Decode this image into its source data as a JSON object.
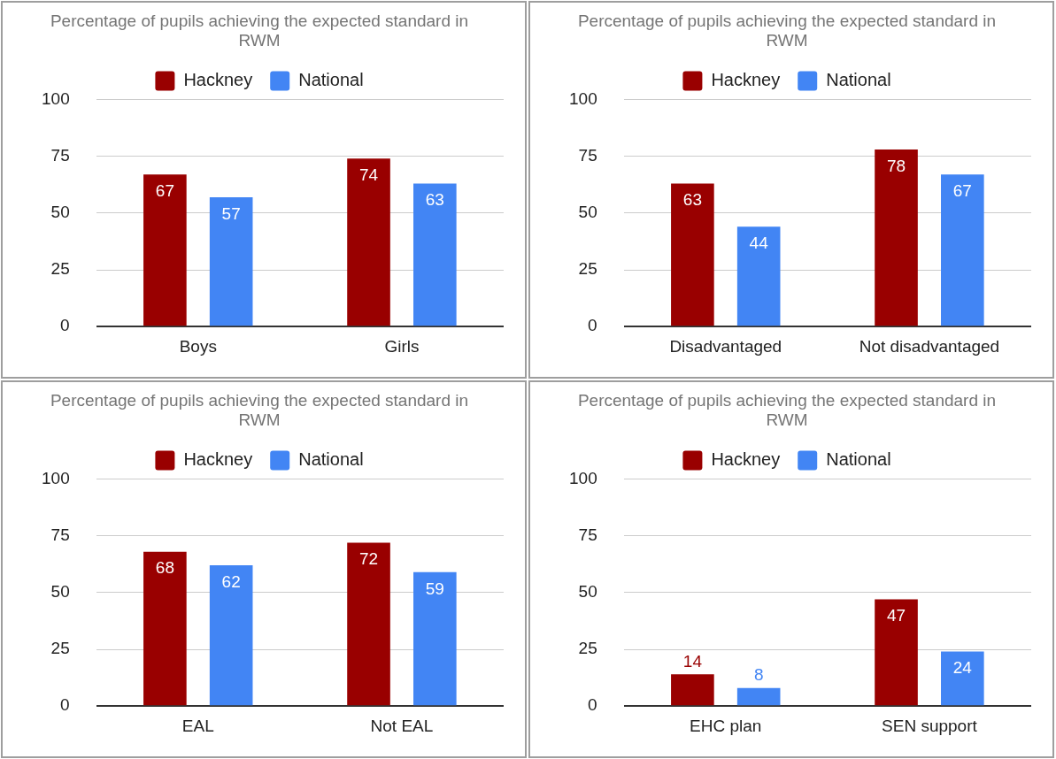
{
  "chart_data": [
    {
      "type": "bar",
      "title": "Percentage of pupils achieving the expected standard in RWM",
      "categories": [
        "Boys",
        "Girls"
      ],
      "series": [
        {
          "name": "Hackney",
          "color": "#990000",
          "values": [
            67,
            74
          ]
        },
        {
          "name": "National",
          "color": "#4285f4",
          "values": [
            57,
            63
          ]
        }
      ],
      "ylim": [
        0,
        100
      ],
      "yticks": [
        0,
        25,
        50,
        75,
        100
      ],
      "grid": "y",
      "legend": "top",
      "data_labels": true
    },
    {
      "type": "bar",
      "title": "Percentage of pupils achieving the expected standard in RWM",
      "categories": [
        "Disadvantaged",
        "Not disadvantaged"
      ],
      "series": [
        {
          "name": "Hackney",
          "color": "#990000",
          "values": [
            63,
            78
          ]
        },
        {
          "name": "National",
          "color": "#4285f4",
          "values": [
            44,
            67
          ]
        }
      ],
      "ylim": [
        0,
        100
      ],
      "yticks": [
        0,
        25,
        50,
        75,
        100
      ],
      "grid": "y",
      "legend": "top",
      "data_labels": true
    },
    {
      "type": "bar",
      "title": "Percentage of pupils achieving the expected standard in RWM",
      "categories": [
        "EAL",
        "Not EAL"
      ],
      "series": [
        {
          "name": "Hackney",
          "color": "#990000",
          "values": [
            68,
            72
          ]
        },
        {
          "name": "National",
          "color": "#4285f4",
          "values": [
            62,
            59
          ]
        }
      ],
      "ylim": [
        0,
        100
      ],
      "yticks": [
        0,
        25,
        50,
        75,
        100
      ],
      "grid": "y",
      "legend": "top",
      "data_labels": true
    },
    {
      "type": "bar",
      "title": "Percentage of pupils achieving the expected standard in RWM",
      "categories": [
        "EHC plan",
        "SEN support"
      ],
      "series": [
        {
          "name": "Hackney",
          "color": "#990000",
          "values": [
            14,
            47
          ]
        },
        {
          "name": "National",
          "color": "#4285f4",
          "values": [
            8,
            24
          ]
        }
      ],
      "ylim": [
        0,
        100
      ],
      "yticks": [
        0,
        25,
        50,
        75,
        100
      ],
      "grid": "y",
      "legend": "top",
      "data_labels": true
    }
  ]
}
